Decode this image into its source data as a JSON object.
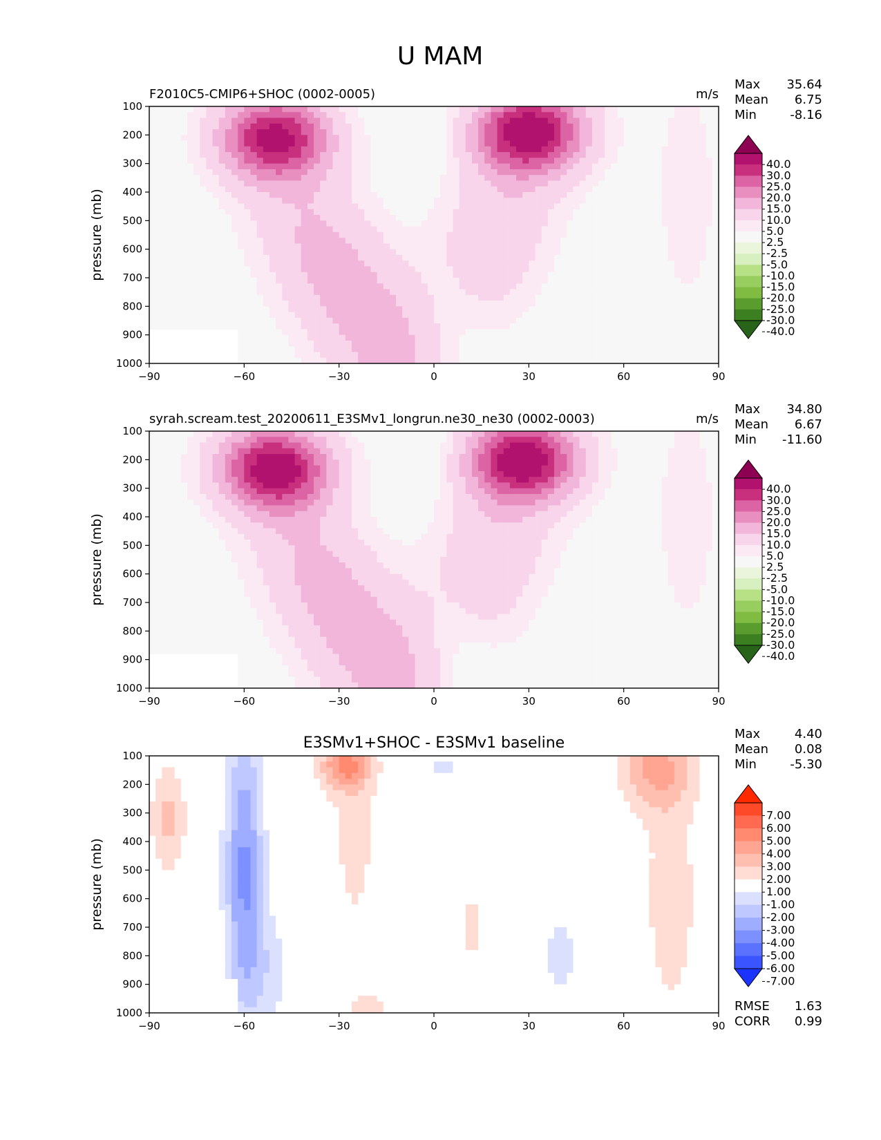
{
  "figure": {
    "title": "U MAM"
  },
  "chart_data": [
    {
      "type": "contour",
      "title_left": "F2010C5-CMIP6+SHOC (0002-0005)",
      "title_center": "",
      "units": "m/s",
      "xlabel": "",
      "ylabel": "pressure (mb)",
      "xlim": [
        -90,
        90
      ],
      "ylim": [
        1000,
        100
      ],
      "x_ticks": [
        -90,
        -60,
        -30,
        0,
        30,
        60,
        90
      ],
      "x_tick_labels": [
        "−90",
        "−60",
        "−30",
        "0",
        "30",
        "60",
        "90"
      ],
      "y_ticks": [
        100,
        200,
        300,
        400,
        500,
        600,
        700,
        800,
        900,
        1000
      ],
      "y_tick_labels": [
        "100",
        "200",
        "300",
        "400",
        "500",
        "600",
        "700",
        "800",
        "900",
        "1000"
      ],
      "stats": [
        {
          "label": "Max",
          "value": "35.64"
        },
        {
          "label": "Mean",
          "value": "6.75"
        },
        {
          "label": "Min",
          "value": "-8.16"
        }
      ],
      "colorbar": {
        "levels": [
          "40.0",
          "30.0",
          "25.0",
          "20.0",
          "15.0",
          "10.0",
          "5.0",
          "2.5",
          "-2.5",
          "-5.0",
          "-10.0",
          "-15.0",
          "-20.0",
          "-25.0",
          "-30.0",
          "-40.0"
        ],
        "colors": [
          "#8e0152",
          "#b0126e",
          "#c8307e",
          "#dc64a4",
          "#e88fc0",
          "#f1b6da",
          "#f8d5ea",
          "#fbeaf3",
          "#f7f7f7",
          "#eaf5dc",
          "#d8efc0",
          "#b8e186",
          "#98cd60",
          "#7fbc41",
          "#5a9c2e",
          "#3c7f21",
          "#276419"
        ]
      },
      "jets": [
        {
          "lat": -50,
          "p": 210,
          "peak": 32
        },
        {
          "lat": 30,
          "p": 190,
          "peak": 35.6
        }
      ]
    },
    {
      "type": "contour",
      "title_left": "syrah.scream.test_20200611_E3SMv1_longrun.ne30_ne30 (0002-0003)",
      "title_center": "",
      "units": "m/s",
      "xlabel": "",
      "ylabel": "pressure (mb)",
      "xlim": [
        -90,
        90
      ],
      "ylim": [
        1000,
        100
      ],
      "x_ticks": [
        -90,
        -60,
        -30,
        0,
        30,
        60,
        90
      ],
      "x_tick_labels": [
        "−90",
        "−60",
        "−30",
        "0",
        "30",
        "60",
        "90"
      ],
      "y_ticks": [
        100,
        200,
        300,
        400,
        500,
        600,
        700,
        800,
        900,
        1000
      ],
      "y_tick_labels": [
        "100",
        "200",
        "300",
        "400",
        "500",
        "600",
        "700",
        "800",
        "900",
        "1000"
      ],
      "stats": [
        {
          "label": "Max",
          "value": "34.80"
        },
        {
          "label": "Mean",
          "value": "6.67"
        },
        {
          "label": "Min",
          "value": "-11.60"
        }
      ],
      "colorbar": {
        "levels": [
          "40.0",
          "30.0",
          "25.0",
          "20.0",
          "15.0",
          "10.0",
          "5.0",
          "2.5",
          "-2.5",
          "-5.0",
          "-10.0",
          "-15.0",
          "-20.0",
          "-25.0",
          "-30.0",
          "-40.0"
        ],
        "colors": [
          "#8e0152",
          "#b0126e",
          "#c8307e",
          "#dc64a4",
          "#e88fc0",
          "#f1b6da",
          "#f8d5ea",
          "#fbeaf3",
          "#f7f7f7",
          "#eaf5dc",
          "#d8efc0",
          "#b8e186",
          "#98cd60",
          "#7fbc41",
          "#5a9c2e",
          "#3c7f21",
          "#276419"
        ]
      },
      "jets": [
        {
          "lat": -50,
          "p": 230,
          "peak": 34
        },
        {
          "lat": 28,
          "p": 200,
          "peak": 34.8
        }
      ]
    },
    {
      "type": "contour",
      "title_left": "",
      "title_center": "E3SMv1+SHOC - E3SMv1 baseline",
      "units": "",
      "xlabel": "",
      "ylabel": "pressure (mb)",
      "xlim": [
        -90,
        90
      ],
      "ylim": [
        1000,
        100
      ],
      "x_ticks": [
        -90,
        -60,
        -30,
        0,
        30,
        60,
        90
      ],
      "x_tick_labels": [
        "−90",
        "−60",
        "−30",
        "0",
        "30",
        "60",
        "90"
      ],
      "y_ticks": [
        100,
        200,
        300,
        400,
        500,
        600,
        700,
        800,
        900,
        1000
      ],
      "y_tick_labels": [
        "100",
        "200",
        "300",
        "400",
        "500",
        "600",
        "700",
        "800",
        "900",
        "1000"
      ],
      "stats": [
        {
          "label": "Max",
          "value": "4.40"
        },
        {
          "label": "Mean",
          "value": "0.08"
        },
        {
          "label": "Min",
          "value": "-5.30"
        }
      ],
      "extra_stats": [
        {
          "label": "RMSE",
          "value": "1.63"
        },
        {
          "label": "CORR",
          "value": "0.99"
        }
      ],
      "colorbar": {
        "levels": [
          "7.00",
          "6.00",
          "5.00",
          "4.00",
          "3.00",
          "2.00",
          "1.00",
          "-1.00",
          "-2.00",
          "-3.00",
          "-4.00",
          "-5.00",
          "-6.00",
          "-7.00"
        ],
        "colors": [
          "#ff2a00",
          "#ff4a2a",
          "#ff6a50",
          "#ff8a70",
          "#ffa592",
          "#ffbfb0",
          "#ffdcd4",
          "#ffffff",
          "#dbe0ff",
          "#bfc8ff",
          "#9eadff",
          "#7c90ff",
          "#5a72ff",
          "#3a55ff",
          "#1a33ff"
        ]
      },
      "anomalies": [
        {
          "lat": -60,
          "p": 520,
          "value": -5.3
        },
        {
          "lat": -28,
          "p": 120,
          "value": 4.4
        },
        {
          "lat": 70,
          "p": 130,
          "value": 3.5
        },
        {
          "lat": -84,
          "p": 320,
          "value": 2.2
        },
        {
          "lat": 40,
          "p": 800,
          "value": -1.3
        },
        {
          "lat": 2,
          "p": 130,
          "value": -1.2
        }
      ]
    }
  ]
}
